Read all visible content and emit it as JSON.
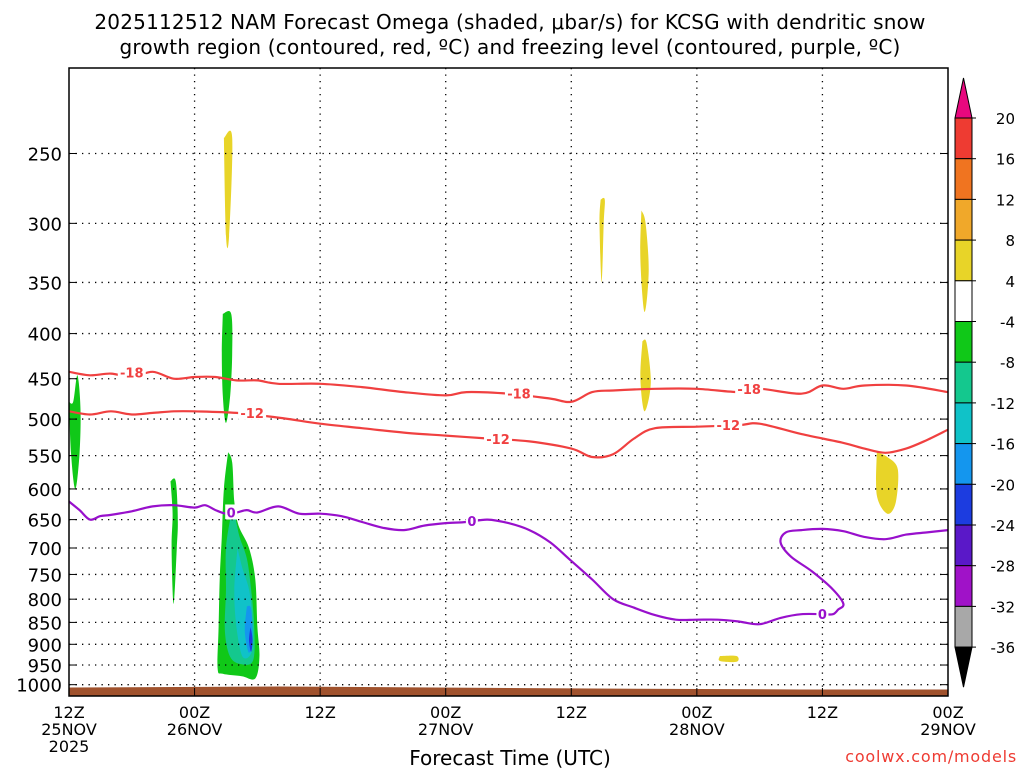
{
  "chart_data": {
    "type": "heatmap",
    "title": "2025112512 NAM Forecast Omega (shaded, μbar/s) for KCSG with dendritic snow growth region (contoured, red, ºC) and freezing level (contoured, purple, ºC)",
    "title_lines": [
      "2025112512 NAM Forecast Omega (shaded, μbar/s) for KCSG with dendritic snow",
      "growth region (contoured, red, ºC) and freezing level (contoured, purple, ºC)"
    ],
    "xlabel": "Forecast Time (UTC)",
    "ylabel": "",
    "credit": "coolwx.com/models",
    "x_unit": "hours after 2025-11-25 12Z",
    "xlim": [
      0,
      84
    ],
    "ylim": [
      1030,
      200
    ],
    "y_scale": "log-pressure",
    "grid": true,
    "x_ticks": [
      {
        "x": 0,
        "lines": [
          "12Z",
          "25NOV",
          "2025"
        ]
      },
      {
        "x": 12,
        "lines": [
          "00Z",
          "26NOV"
        ]
      },
      {
        "x": 24,
        "lines": [
          "12Z"
        ]
      },
      {
        "x": 36,
        "lines": [
          "00Z",
          "27NOV"
        ]
      },
      {
        "x": 48,
        "lines": [
          "12Z"
        ]
      },
      {
        "x": 60,
        "lines": [
          "00Z",
          "28NOV"
        ]
      },
      {
        "x": 72,
        "lines": [
          "12Z"
        ]
      },
      {
        "x": 84,
        "lines": [
          "00Z",
          "29NOV"
        ]
      }
    ],
    "y_ticks": [
      250,
      300,
      350,
      400,
      450,
      500,
      550,
      600,
      650,
      700,
      750,
      800,
      850,
      900,
      950,
      1000
    ],
    "colorbar": {
      "labels": [
        "20",
        "16",
        "12",
        "8",
        "4",
        "-4",
        "-8",
        "-12",
        "-16",
        "-20",
        "-24",
        "-28",
        "-32",
        "-36"
      ],
      "colors": [
        "#e8087e",
        "#ee3b32",
        "#f07420",
        "#f0a82a",
        "#e8d428",
        "#ffffff",
        "#10c818",
        "#14c88e",
        "#10c2c8",
        "#1496ee",
        "#1c3ce0",
        "#5a18c8",
        "#a012c8",
        "#a8a8a8",
        "#000000"
      ]
    },
    "contours": [
      {
        "name": "dendritic snow growth region",
        "level": -18,
        "color": "#f04040",
        "points": [
          [
            0,
            442
          ],
          [
            2,
            446
          ],
          [
            4,
            444
          ],
          [
            6,
            448
          ],
          [
            8,
            442
          ],
          [
            10,
            450
          ],
          [
            12,
            448
          ],
          [
            14,
            448
          ],
          [
            16,
            452
          ],
          [
            18,
            452
          ],
          [
            20,
            456
          ],
          [
            24,
            456
          ],
          [
            28,
            460
          ],
          [
            32,
            466
          ],
          [
            36,
            470
          ],
          [
            38,
            466
          ],
          [
            42,
            468
          ],
          [
            46,
            474
          ],
          [
            48,
            478
          ],
          [
            50,
            466
          ],
          [
            52,
            464
          ],
          [
            56,
            462
          ],
          [
            60,
            462
          ],
          [
            64,
            466
          ],
          [
            66,
            462
          ],
          [
            70,
            468
          ],
          [
            72,
            458
          ],
          [
            74,
            462
          ],
          [
            76,
            458
          ],
          [
            80,
            458
          ],
          [
            84,
            466
          ]
        ],
        "labels": [
          {
            "x": 6,
            "p": 443
          },
          {
            "x": 43,
            "p": 468
          },
          {
            "x": 65,
            "p": 462
          }
        ]
      },
      {
        "name": "dendritic snow growth region",
        "level": -12,
        "color": "#f04040",
        "points": [
          [
            0,
            490
          ],
          [
            2,
            494
          ],
          [
            4,
            490
          ],
          [
            6,
            494
          ],
          [
            8,
            492
          ],
          [
            10,
            490
          ],
          [
            12,
            490
          ],
          [
            16,
            492
          ],
          [
            20,
            498
          ],
          [
            24,
            506
          ],
          [
            28,
            512
          ],
          [
            32,
            518
          ],
          [
            36,
            522
          ],
          [
            40,
            526
          ],
          [
            44,
            530
          ],
          [
            48,
            540
          ],
          [
            50,
            552
          ],
          [
            52,
            548
          ],
          [
            54,
            526
          ],
          [
            56,
            512
          ],
          [
            60,
            510
          ],
          [
            64,
            508
          ],
          [
            66,
            506
          ],
          [
            70,
            520
          ],
          [
            74,
            532
          ],
          [
            76,
            540
          ],
          [
            78,
            546
          ],
          [
            80,
            540
          ],
          [
            82,
            528
          ],
          [
            84,
            514
          ]
        ],
        "labels": [
          {
            "x": 17.5,
            "p": 492
          },
          {
            "x": 41,
            "p": 527
          },
          {
            "x": 63,
            "p": 508
          }
        ]
      },
      {
        "name": "freezing level",
        "level": 0,
        "color": "#9810cc",
        "points": [
          [
            0,
            620
          ],
          [
            1,
            634
          ],
          [
            2,
            650
          ],
          [
            3,
            644
          ],
          [
            4,
            642
          ],
          [
            6,
            636
          ],
          [
            8,
            628
          ],
          [
            10,
            626
          ],
          [
            12,
            630
          ],
          [
            13,
            626
          ],
          [
            14,
            634
          ],
          [
            15,
            640
          ],
          [
            16,
            638
          ],
          [
            17,
            634
          ],
          [
            18,
            638
          ],
          [
            20,
            628
          ],
          [
            22,
            640
          ],
          [
            24,
            640
          ],
          [
            26,
            644
          ],
          [
            28,
            654
          ],
          [
            30,
            664
          ],
          [
            32,
            668
          ],
          [
            34,
            660
          ],
          [
            36,
            656
          ],
          [
            38,
            654
          ],
          [
            40,
            650
          ],
          [
            42,
            656
          ],
          [
            44,
            668
          ],
          [
            46,
            690
          ],
          [
            48,
            724
          ],
          [
            50,
            760
          ],
          [
            52,
            800
          ],
          [
            54,
            818
          ],
          [
            56,
            834
          ],
          [
            58,
            844
          ],
          [
            60,
            844
          ],
          [
            62,
            844
          ],
          [
            64,
            848
          ],
          [
            66,
            854
          ],
          [
            68,
            840
          ],
          [
            70,
            832
          ],
          [
            72,
            832
          ],
          [
            73,
            832
          ],
          [
            73.5,
            822
          ],
          [
            74,
            810
          ],
          [
            73,
            780
          ],
          [
            71,
            744
          ],
          [
            69,
            716
          ],
          [
            68,
            690
          ],
          [
            68.5,
            672
          ],
          [
            70,
            668
          ],
          [
            72,
            666
          ],
          [
            74,
            670
          ],
          [
            76,
            680
          ],
          [
            78,
            684
          ],
          [
            80,
            676
          ],
          [
            82,
            672
          ],
          [
            84,
            668
          ]
        ],
        "labels": [
          {
            "x": 15.5,
            "p": 638
          },
          {
            "x": 38.5,
            "p": 652
          },
          {
            "x": 72,
            "p": 832
          }
        ]
      }
    ],
    "shaded_regions": [
      {
        "color": "#e8d428",
        "points": [
          [
            14.8,
            240
          ],
          [
            15.0,
            310
          ],
          [
            15.3,
            310
          ],
          [
            15.6,
            240
          ]
        ]
      },
      {
        "color": "#10c818",
        "points": [
          [
            14.7,
            380
          ],
          [
            14.6,
            420
          ],
          [
            14.7,
            470
          ],
          [
            15.0,
            505
          ],
          [
            15.4,
            470
          ],
          [
            15.6,
            420
          ],
          [
            15.5,
            380
          ]
        ]
      },
      {
        "color": "#10c818",
        "points": [
          [
            0,
            478
          ],
          [
            0.2,
            548
          ],
          [
            0.6,
            600
          ],
          [
            1.0,
            548
          ],
          [
            1.1,
            488
          ],
          [
            0.8,
            446
          ],
          [
            0.4,
            478
          ]
        ]
      },
      {
        "color": "#10c818",
        "points": [
          [
            9.7,
            588
          ],
          [
            9.9,
            640
          ],
          [
            9.8,
            700
          ],
          [
            10.0,
            810
          ],
          [
            10.3,
            700
          ],
          [
            10.4,
            650
          ],
          [
            10.2,
            588
          ]
        ]
      },
      {
        "color": "#10c818",
        "points": [
          [
            15.2,
            545
          ],
          [
            14.8,
            600
          ],
          [
            14.6,
            680
          ],
          [
            14.4,
            760
          ],
          [
            14.3,
            860
          ],
          [
            14.2,
            958
          ],
          [
            14.7,
            972
          ],
          [
            16.5,
            978
          ],
          [
            17.8,
            984
          ],
          [
            18.2,
            930
          ],
          [
            18.0,
            860
          ],
          [
            17.8,
            760
          ],
          [
            17.2,
            700
          ],
          [
            16.2,
            660
          ],
          [
            15.8,
            620
          ],
          [
            15.6,
            560
          ]
        ]
      },
      {
        "color": "#14c88e",
        "points": [
          [
            15.5,
            640
          ],
          [
            15.0,
            700
          ],
          [
            15.0,
            780
          ],
          [
            14.9,
            870
          ],
          [
            15.4,
            930
          ],
          [
            16.5,
            948
          ],
          [
            17.6,
            938
          ],
          [
            17.7,
            860
          ],
          [
            17.4,
            780
          ],
          [
            17.0,
            720
          ],
          [
            16.3,
            680
          ],
          [
            15.8,
            640
          ]
        ]
      },
      {
        "color": "#10c2c8",
        "points": [
          [
            16.1,
            700
          ],
          [
            15.8,
            780
          ],
          [
            16.0,
            860
          ],
          [
            16.6,
            930
          ],
          [
            17.5,
            915
          ],
          [
            17.5,
            840
          ],
          [
            17.2,
            780
          ],
          [
            16.6,
            740
          ]
        ]
      },
      {
        "color": "#1496ee",
        "points": [
          [
            17.0,
            815
          ],
          [
            16.8,
            870
          ],
          [
            17.2,
            920
          ],
          [
            17.55,
            880
          ],
          [
            17.4,
            820
          ]
        ]
      },
      {
        "color": "#1c3ce0",
        "points": [
          [
            17.35,
            860
          ],
          [
            17.2,
            890
          ],
          [
            17.4,
            918
          ],
          [
            17.55,
            890
          ]
        ]
      },
      {
        "color": "#e8d428",
        "points": [
          [
            50.8,
            282
          ],
          [
            50.7,
            300
          ],
          [
            50.9,
            350
          ],
          [
            51.1,
            300
          ],
          [
            51.2,
            282
          ]
        ]
      },
      {
        "color": "#e8d428",
        "points": [
          [
            54.7,
            290
          ],
          [
            54.6,
            330
          ],
          [
            55.0,
            378
          ],
          [
            55.4,
            340
          ],
          [
            55.1,
            300
          ]
        ]
      },
      {
        "color": "#e8d428",
        "points": [
          [
            54.8,
            408
          ],
          [
            54.6,
            450
          ],
          [
            55.0,
            490
          ],
          [
            55.6,
            455
          ],
          [
            55.2,
            410
          ]
        ]
      },
      {
        "color": "#e8d428",
        "points": [
          [
            62.2,
            928
          ],
          [
            62.2,
            940
          ],
          [
            63.8,
            942
          ],
          [
            63.8,
            928
          ]
        ]
      },
      {
        "color": "#e8d428",
        "points": [
          [
            77.2,
            545
          ],
          [
            77.2,
            610
          ],
          [
            78.2,
            640
          ],
          [
            79.0,
            622
          ],
          [
            79.2,
            570
          ],
          [
            78.2,
            552
          ]
        ]
      }
    ],
    "terrain": {
      "color": "#a0522d",
      "pressure": 1010
    }
  }
}
